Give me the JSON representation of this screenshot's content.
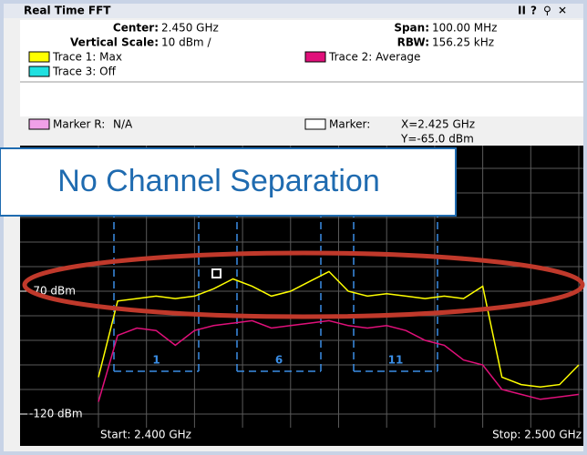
{
  "header": {
    "title": "Real Time FFT"
  },
  "info": {
    "center_label": "Center:",
    "center": "2.450 GHz",
    "span_label": "Span:",
    "span": "100.00 MHz",
    "vscale_label": "Vertical Scale:",
    "vscale": "10 dBm /",
    "rbw_label": "RBW:",
    "rbw": "156.25 kHz",
    "trace1": "Trace 1: Max",
    "trace2": "Trace 2: Average",
    "trace3": "Trace 3: Off",
    "marker_r_label": "Marker R:",
    "marker_r": "N/A",
    "marker_label": "Marker:",
    "marker_x": "X=2.425 GHz",
    "marker_y": "Y=-65.0 dBm"
  },
  "overlay": "No Channel Separation",
  "channels": [
    "1",
    "6",
    "11"
  ],
  "start": "Start: 2.400 GHz",
  "stop": "Stop: 2.500 GHz",
  "chart_data": {
    "type": "line",
    "x": [
      2.4,
      2.404,
      2.408,
      2.412,
      2.416,
      2.42,
      2.424,
      2.428,
      2.432,
      2.436,
      2.44,
      2.444,
      2.448,
      2.452,
      2.456,
      2.46,
      2.464,
      2.468,
      2.472,
      2.476,
      2.48,
      2.484,
      2.488,
      2.492,
      2.496,
      2.5
    ],
    "series": [
      {
        "name": "Trace 1: Max",
        "color": "#ffff00",
        "values": [
          -105,
          -74,
          -73,
          -72,
          -73,
          -72,
          -69,
          -65,
          -68,
          -72,
          -70,
          -66,
          -62,
          -70,
          -72,
          -71,
          -72,
          -73,
          -72,
          -73,
          -68,
          -105,
          -108,
          -109,
          -108,
          -100
        ]
      },
      {
        "name": "Trace 2: Average",
        "color": "#e0107a",
        "values": [
          -115,
          -88,
          -85,
          -86,
          -92,
          -86,
          -84,
          -83,
          -82,
          -85,
          -84,
          -83,
          -82,
          -84,
          -85,
          -84,
          -86,
          -90,
          -92,
          -98,
          -100,
          -110,
          -112,
          -114,
          -113,
          -112
        ]
      }
    ],
    "xlim": [
      2.4,
      2.5
    ],
    "ylim": [
      -120,
      -20
    ],
    "yticks": [
      {
        "value": -70,
        "label": "-70 dBm"
      },
      {
        "value": -120,
        "label": "-120 dBm"
      }
    ]
  }
}
